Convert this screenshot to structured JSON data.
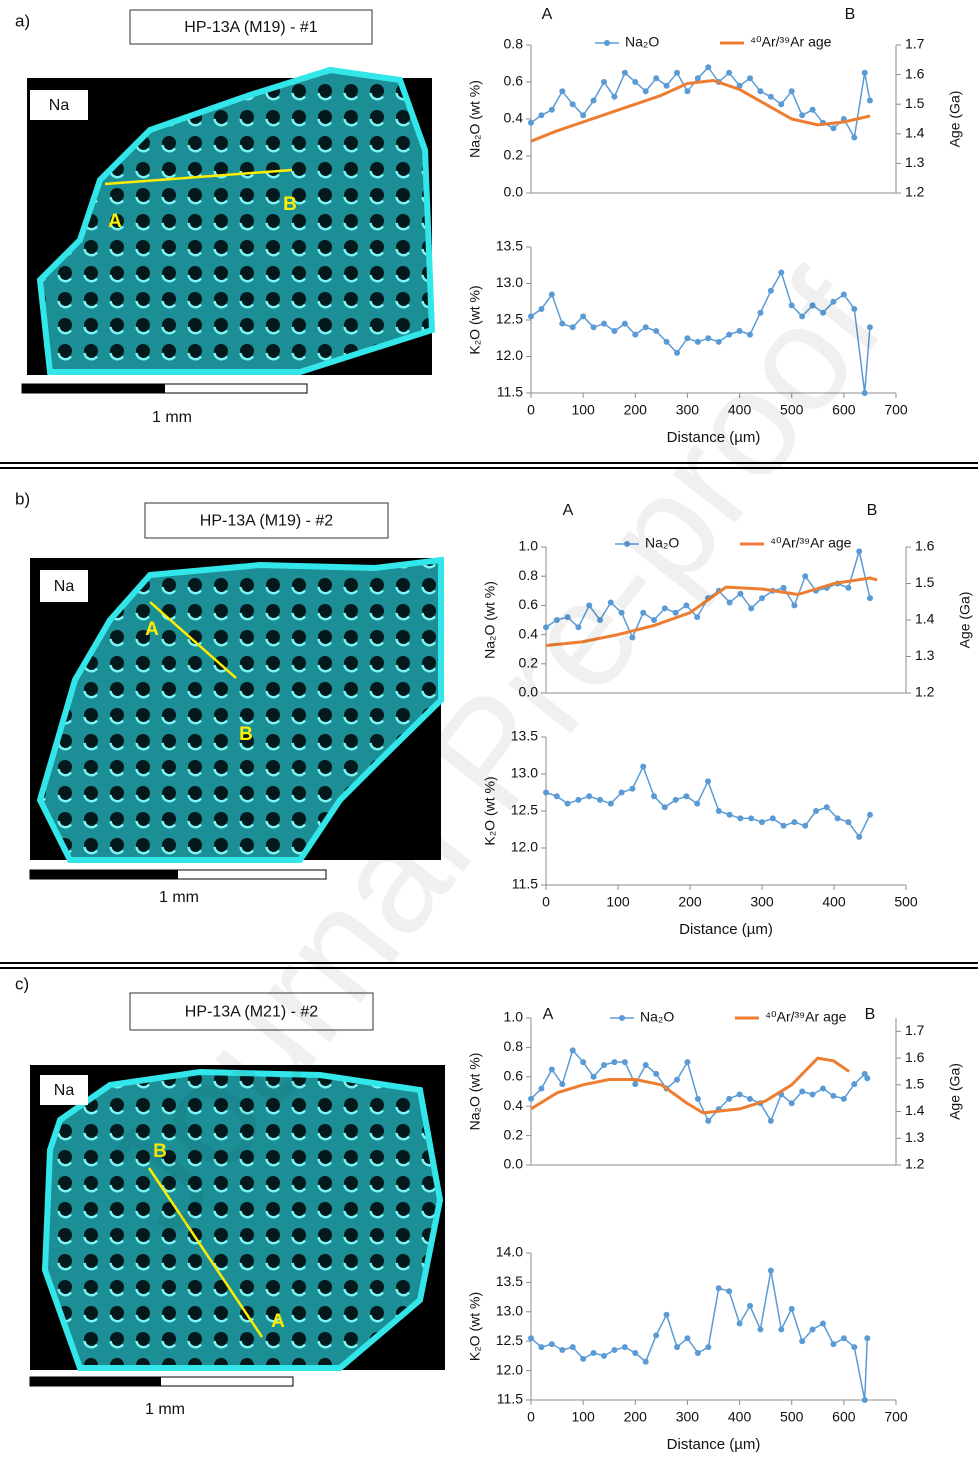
{
  "watermark": "Journal Pre-proof",
  "panels": [
    {
      "label": "a)",
      "title": "HP-13A (M19) - #1",
      "element": "Na",
      "start": "A",
      "end": "B",
      "scale": "1 mm"
    },
    {
      "label": "b)",
      "title": "HP-13A (M19) - #2",
      "element": "Na",
      "start": "A",
      "end": "B",
      "scale": "1 mm"
    },
    {
      "label": "c)",
      "title": "HP-13A (M21) - #2",
      "element": "Na",
      "start": "A",
      "end": "B",
      "scale": "1 mm"
    }
  ],
  "chart_data": [
    {
      "type": "line",
      "legend": "top",
      "annotations": [
        "A",
        "B"
      ],
      "xlim": [
        0,
        700
      ],
      "ylim": [
        0,
        0.8
      ],
      "yticks": [
        {
          "value": 0,
          "label": "0.0"
        },
        0.2,
        0.4,
        0.6,
        0.8
      ],
      "y2lim": [
        1.2,
        1.7
      ],
      "y2ticks": [
        1.2,
        1.3,
        1.4,
        1.5,
        1.6,
        1.7
      ],
      "y_label": "Na₂O (wt %)",
      "y2_label": "Age (Ga)",
      "series": [
        {
          "name": "Na₂O",
          "color": "#5b9bd5",
          "marker": true,
          "x": [
            0,
            20,
            40,
            60,
            80,
            100,
            120,
            140,
            160,
            180,
            200,
            220,
            240,
            260,
            280,
            300,
            320,
            340,
            360,
            380,
            400,
            420,
            440,
            460,
            480,
            500,
            520,
            540,
            560,
            580,
            600,
            620,
            640,
            650
          ],
          "values": [
            0.38,
            0.42,
            0.45,
            0.55,
            0.48,
            0.42,
            0.5,
            0.6,
            0.52,
            0.65,
            0.6,
            0.55,
            0.62,
            0.58,
            0.65,
            0.55,
            0.62,
            0.68,
            0.6,
            0.65,
            0.58,
            0.62,
            0.55,
            0.52,
            0.48,
            0.55,
            0.42,
            0.45,
            0.38,
            0.35,
            0.4,
            0.3,
            0.65,
            0.5
          ]
        },
        {
          "name": "⁴⁰Ar/³⁹Ar age",
          "color": "#ed7d31",
          "marker": false,
          "axis": "y2",
          "x": [
            0,
            50,
            100,
            150,
            200,
            250,
            300,
            350,
            400,
            450,
            500,
            550,
            600,
            650
          ],
          "values": [
            1.375,
            1.41,
            1.44,
            1.47,
            1.5,
            1.53,
            1.57,
            1.58,
            1.55,
            1.5,
            1.45,
            1.43,
            1.44,
            1.46
          ]
        }
      ]
    },
    {
      "type": "line",
      "xlim": [
        0,
        700
      ],
      "xticks": [
        0,
        100,
        200,
        300,
        400,
        500,
        600,
        700
      ],
      "x_label": "Distance (µm)",
      "ylim": [
        11.5,
        13.5
      ],
      "yticks": [
        11.5,
        {
          "value": 12,
          "label": "12.0"
        },
        12.5,
        {
          "value": 13,
          "label": "13.0"
        },
        13.5
      ],
      "y_label": "K₂O (wt %)",
      "series": [
        {
          "color": "#5b9bd5",
          "marker": true,
          "x": [
            0,
            20,
            40,
            60,
            80,
            100,
            120,
            140,
            160,
            180,
            200,
            220,
            240,
            260,
            280,
            300,
            320,
            340,
            360,
            380,
            400,
            420,
            440,
            460,
            480,
            500,
            520,
            540,
            560,
            580,
            600,
            620,
            640,
            650
          ],
          "values": [
            12.55,
            12.65,
            12.85,
            12.45,
            12.4,
            12.55,
            12.4,
            12.45,
            12.35,
            12.45,
            12.3,
            12.4,
            12.35,
            12.2,
            12.05,
            12.25,
            12.2,
            12.25,
            12.2,
            12.3,
            12.35,
            12.3,
            12.6,
            12.9,
            13.15,
            12.7,
            12.55,
            12.7,
            12.6,
            12.75,
            12.85,
            12.65,
            11.5,
            12.4
          ]
        }
      ]
    },
    {
      "type": "line",
      "legend": "top",
      "annotations": [
        "A",
        "B"
      ],
      "xlim": [
        0,
        500
      ],
      "ylim": [
        0,
        1
      ],
      "yticks": [
        {
          "value": 0,
          "label": "0.0"
        },
        0.2,
        0.4,
        0.6,
        0.8,
        {
          "value": 1,
          "label": "1.0"
        }
      ],
      "y2lim": [
        1.2,
        1.6
      ],
      "y2ticks": [
        1.2,
        1.3,
        1.4,
        1.5,
        1.6
      ],
      "y_label": "Na₂O (wt %)",
      "y2_label": "Age (Ga)",
      "series": [
        {
          "name": "Na₂O",
          "color": "#5b9bd5",
          "marker": true,
          "x": [
            0,
            15,
            30,
            45,
            60,
            75,
            90,
            105,
            120,
            135,
            150,
            165,
            180,
            195,
            210,
            225,
            240,
            255,
            270,
            285,
            300,
            315,
            330,
            345,
            360,
            375,
            390,
            405,
            420,
            435,
            450
          ],
          "values": [
            0.45,
            0.5,
            0.52,
            0.45,
            0.6,
            0.5,
            0.62,
            0.55,
            0.38,
            0.55,
            0.5,
            0.58,
            0.55,
            0.6,
            0.52,
            0.65,
            0.7,
            0.62,
            0.68,
            0.58,
            0.65,
            0.7,
            0.72,
            0.6,
            0.8,
            0.7,
            0.72,
            0.75,
            0.72,
            0.97,
            0.65
          ]
        },
        {
          "name": "⁴⁰Ar/³⁹Ar age",
          "color": "#ed7d31",
          "marker": false,
          "axis": "y2",
          "x": [
            0,
            50,
            100,
            150,
            200,
            250,
            300,
            350,
            400,
            450,
            460
          ],
          "values": [
            1.33,
            1.34,
            1.36,
            1.385,
            1.42,
            1.49,
            1.485,
            1.47,
            1.5,
            1.515,
            1.51
          ]
        }
      ]
    },
    {
      "type": "line",
      "xlim": [
        0,
        500
      ],
      "xticks": [
        0,
        100,
        200,
        300,
        400,
        500
      ],
      "x_label": "Distance (µm)",
      "ylim": [
        11.5,
        13.5
      ],
      "yticks": [
        11.5,
        {
          "value": 12,
          "label": "12.0"
        },
        12.5,
        {
          "value": 13,
          "label": "13.0"
        },
        13.5
      ],
      "y_label": "K₂O (wt %)",
      "series": [
        {
          "color": "#5b9bd5",
          "marker": true,
          "x": [
            0,
            15,
            30,
            45,
            60,
            75,
            90,
            105,
            120,
            135,
            150,
            165,
            180,
            195,
            210,
            225,
            240,
            255,
            270,
            285,
            300,
            315,
            330,
            345,
            360,
            375,
            390,
            405,
            420,
            435,
            450
          ],
          "values": [
            12.75,
            12.7,
            12.6,
            12.65,
            12.7,
            12.65,
            12.6,
            12.75,
            12.8,
            13.1,
            12.7,
            12.55,
            12.65,
            12.7,
            12.6,
            12.9,
            12.5,
            12.45,
            12.4,
            12.4,
            12.35,
            12.4,
            12.3,
            12.35,
            12.3,
            12.5,
            12.55,
            12.4,
            12.35,
            12.15,
            12.45
          ]
        }
      ]
    },
    {
      "type": "line",
      "legend": "top",
      "annotations": [
        "A",
        "B"
      ],
      "xlim": [
        0,
        700
      ],
      "ylim": [
        0,
        1
      ],
      "yticks": [
        {
          "value": 0,
          "label": "0.0"
        },
        0.2,
        0.4,
        0.6,
        0.8,
        {
          "value": 1,
          "label": "1.0"
        }
      ],
      "y2lim": [
        1.2,
        1.75
      ],
      "y2ticks": [
        1.2,
        1.3,
        1.4,
        1.5,
        1.6,
        1.7
      ],
      "y_label": "Na₂O (wt %)",
      "y2_label": "Age (Ga)",
      "series": [
        {
          "name": "Na₂O",
          "color": "#5b9bd5",
          "marker": true,
          "x": [
            0,
            20,
            40,
            60,
            80,
            100,
            120,
            140,
            160,
            180,
            200,
            220,
            240,
            260,
            280,
            300,
            320,
            340,
            360,
            380,
            400,
            420,
            440,
            460,
            480,
            500,
            520,
            540,
            560,
            580,
            600,
            620,
            640,
            645
          ],
          "values": [
            0.45,
            0.52,
            0.65,
            0.55,
            0.78,
            0.7,
            0.6,
            0.68,
            0.7,
            0.7,
            0.55,
            0.68,
            0.62,
            0.52,
            0.58,
            0.7,
            0.45,
            0.3,
            0.38,
            0.45,
            0.48,
            0.45,
            0.42,
            0.3,
            0.48,
            0.42,
            0.5,
            0.48,
            0.52,
            0.47,
            0.45,
            0.55,
            0.62,
            0.59
          ]
        },
        {
          "name": "⁴⁰Ar/³⁹Ar age",
          "color": "#ed7d31",
          "marker": false,
          "axis": "y2",
          "x": [
            0,
            50,
            100,
            150,
            200,
            250,
            300,
            330,
            400,
            450,
            500,
            550,
            580,
            610
          ],
          "values": [
            1.41,
            1.47,
            1.5,
            1.52,
            1.52,
            1.5,
            1.43,
            1.395,
            1.41,
            1.44,
            1.5,
            1.6,
            1.59,
            1.55
          ]
        }
      ]
    },
    {
      "type": "line",
      "xlim": [
        0,
        700
      ],
      "xticks": [
        0,
        100,
        200,
        300,
        400,
        500,
        600,
        700
      ],
      "x_label": "Distance (µm)",
      "ylim": [
        11.5,
        14
      ],
      "yticks": [
        11.5,
        {
          "value": 12,
          "label": "12.0"
        },
        12.5,
        {
          "value": 13,
          "label": "13.0"
        },
        13.5,
        {
          "value": 14,
          "label": "14.0"
        }
      ],
      "y_label": "K₂O (wt %)",
      "series": [
        {
          "color": "#5b9bd5",
          "marker": true,
          "x": [
            0,
            20,
            40,
            60,
            80,
            100,
            120,
            140,
            160,
            180,
            200,
            220,
            240,
            260,
            280,
            300,
            320,
            340,
            360,
            380,
            400,
            420,
            440,
            460,
            480,
            500,
            520,
            540,
            560,
            580,
            600,
            620,
            640,
            645
          ],
          "values": [
            12.55,
            12.4,
            12.45,
            12.35,
            12.4,
            12.2,
            12.3,
            12.25,
            12.35,
            12.4,
            12.3,
            12.15,
            12.6,
            12.95,
            12.4,
            12.55,
            12.3,
            12.4,
            13.4,
            13.35,
            12.8,
            13.1,
            12.7,
            13.7,
            12.7,
            13.05,
            12.5,
            12.7,
            12.8,
            12.45,
            12.55,
            12.4,
            11.5,
            12.55
          ]
        }
      ]
    }
  ]
}
